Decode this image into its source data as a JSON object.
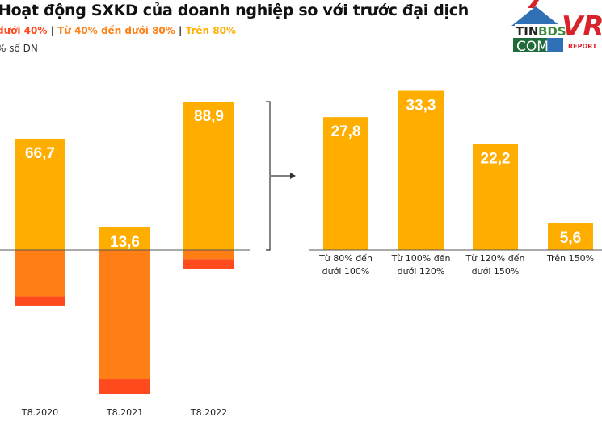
{
  "title": "Hoạt động SXKD của doanh nghiệp so với trước đại dịch",
  "legend": [
    {
      "label": "dưới 40%",
      "color": "#FF4A1E"
    },
    {
      "label": "Từ 40% đến dưới 80%",
      "color": "#FF7F16"
    },
    {
      "label": "Trên 80%",
      "color": "#FFAE00"
    }
  ],
  "unit": "% số DN",
  "logo": "TINBDS.COM VR REPORT",
  "chart_data": [
    {
      "type": "bar",
      "stacked": true,
      "categories": [
        "T8.2020",
        "T8.2021",
        "T8.2022"
      ],
      "series": [
        {
          "name": "Trên 80%",
          "values": [
            66.7,
            13.6,
            88.9
          ],
          "color": "#FFAE00",
          "direction": "up",
          "labels": [
            "66,7",
            "13,6",
            "88,9"
          ]
        },
        {
          "name": "Từ 40% đến dưới 80%",
          "values": [
            27.8,
            77.3,
            5.5
          ],
          "color": "#FF7F16",
          "direction": "down"
        },
        {
          "name": "dưới 40%",
          "values": [
            5.5,
            9.1,
            5.6
          ],
          "color": "#FF4A1E",
          "direction": "down"
        }
      ]
    },
    {
      "type": "bar",
      "categories": [
        [
          "Từ 80% đến",
          "dưới 100%"
        ],
        [
          "Từ 100% đến",
          "dưới 120%"
        ],
        [
          "Từ 120% đến",
          "dưới 150%"
        ],
        [
          "Trên 150%"
        ]
      ],
      "values": [
        27.8,
        33.3,
        22.2,
        5.6
      ],
      "labels": [
        "27,8",
        "33,3",
        "22,2",
        "5,6"
      ],
      "color": "#FFAE00"
    }
  ]
}
